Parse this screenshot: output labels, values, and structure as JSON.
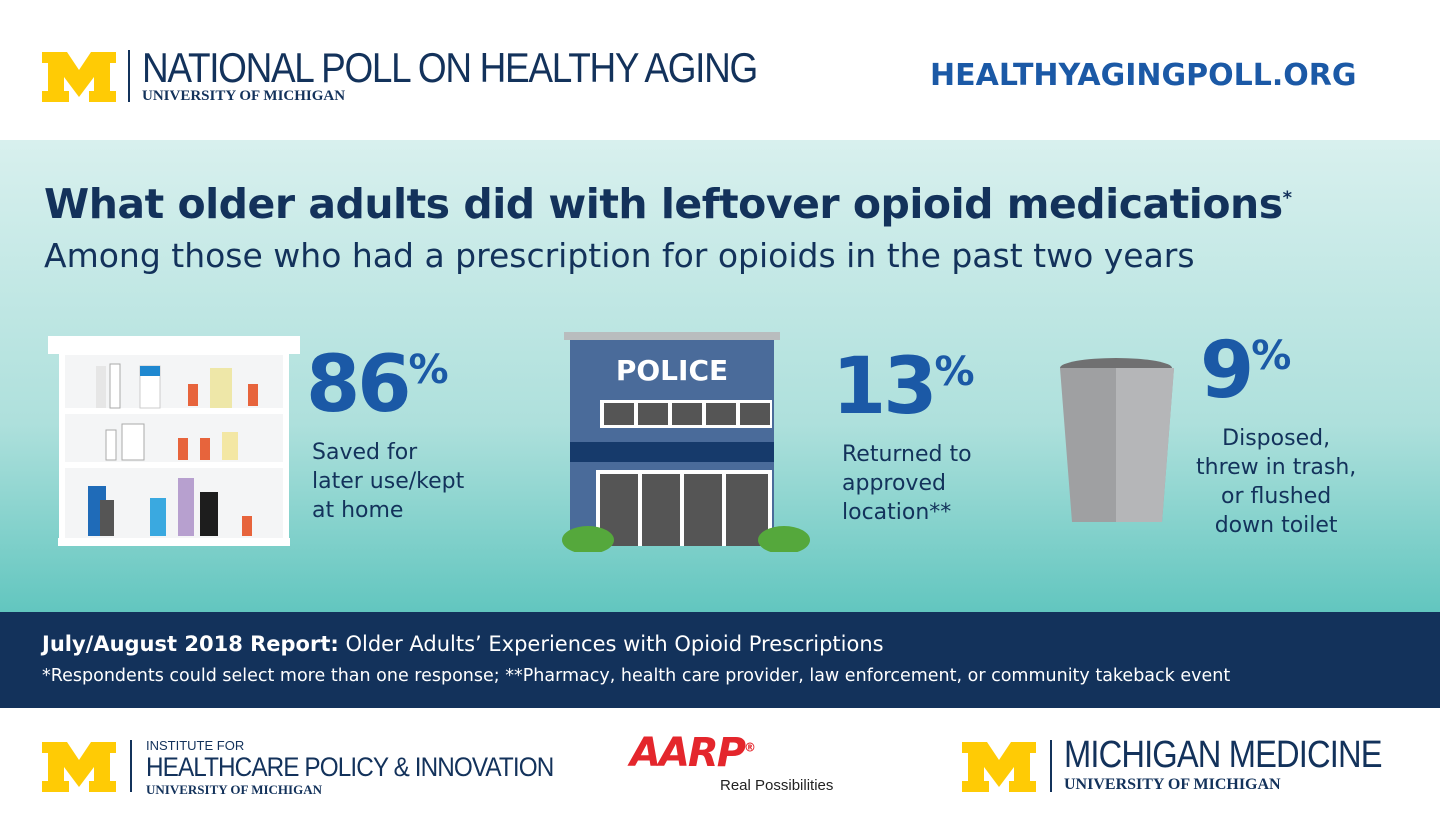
{
  "header": {
    "title": "NATIONAL POLL ON HEALTHY AGING",
    "subtitle": "UNIVERSITY OF MICHIGAN",
    "url": "HEALTHYAGINGPOLL.ORG"
  },
  "headline": {
    "title": "What older adults did with leftover opioid medications",
    "title_mark": "*",
    "subtitle": "Among those who had a prescription for opioids in the past two years"
  },
  "stats": [
    {
      "value": 86,
      "unit": "%",
      "lines": [
        "Saved for",
        "later use/kept",
        "at home"
      ]
    },
    {
      "value": 13,
      "unit": "%",
      "lines": [
        "Returned to",
        "approved",
        "location**"
      ],
      "sign": "POLICE"
    },
    {
      "value": 9,
      "unit": "%",
      "lines": [
        "Disposed,",
        "threw in trash,",
        "or flushed",
        "down toilet"
      ]
    }
  ],
  "report": {
    "label": "July/August 2018 Report:",
    "title": "Older Adults’ Experiences with Opioid Prescriptions",
    "note": "*Respondents could select more than one response; **Pharmacy, health care provider, law enforcement, or community takeback event"
  },
  "footer": {
    "ihpi": {
      "line1": "INSTITUTE FOR",
      "line2": "HEALTHCARE POLICY & INNOVATION",
      "line3": "UNIVERSITY OF MICHIGAN"
    },
    "aarp": {
      "name": "AARP",
      "mark": "®",
      "tagline": "Real Possibilities"
    },
    "medicine": {
      "name": "MICHIGAN MEDICINE",
      "subtitle": "UNIVERSITY OF MICHIGAN"
    }
  }
}
